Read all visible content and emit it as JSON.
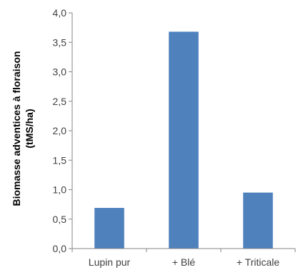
{
  "chart_data": {
    "type": "bar",
    "categories": [
      "Lupin pur",
      "+ Blé",
      "+ Triticale"
    ],
    "values": [
      0.69,
      3.68,
      0.95
    ],
    "title": "",
    "xlabel": "",
    "ylabel_line1": "Biomasse adventices à floraison",
    "ylabel_line2": "(tMS/ha)",
    "ylim": [
      0,
      4
    ],
    "yticks": [
      "0,0",
      "0,5",
      "1,0",
      "1,5",
      "2,0",
      "2,5",
      "3,0",
      "3,5",
      "4,0"
    ],
    "ytick_values": [
      0,
      0.5,
      1,
      1.5,
      2,
      2.5,
      3,
      3.5,
      4
    ],
    "grid": false,
    "legend": "none",
    "bar_color": "#4F81BD",
    "axis_color": "#868686"
  }
}
